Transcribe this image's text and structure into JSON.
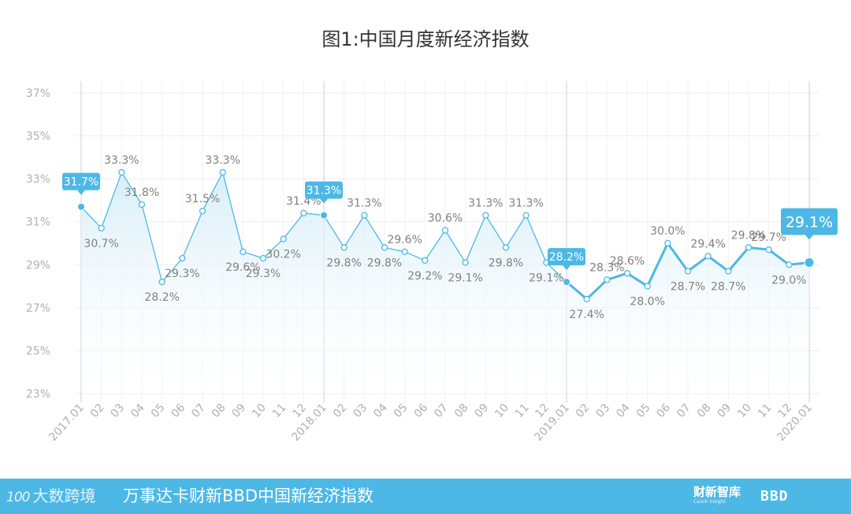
{
  "branding": {
    "watermark": "大数跨境",
    "watermark_num": "100",
    "footer_title": "万事达卡财新BBD中国新经济指数",
    "caixin_logo": "财新智库",
    "caixin_sub": "Caixin Insight",
    "bbd_logo": "BBD"
  },
  "colors": {
    "line": "#4db8e6",
    "area_top": "#d8eef9",
    "callout": "#4db8e6",
    "axis_text": "#b0b0b0",
    "label_text": "#808080",
    "grid": "#eeeeee",
    "footer": "#4db8e6"
  },
  "chart_data": {
    "type": "area",
    "title": "图1:中国月度新经济指数",
    "x_tick_labels": [
      "2017.01",
      "02",
      "03",
      "04",
      "05",
      "06",
      "07",
      "08",
      "09",
      "10",
      "11",
      "12",
      "2018.01",
      "02",
      "03",
      "04",
      "05",
      "06",
      "07",
      "08",
      "09",
      "10",
      "11",
      "12",
      "2019.01",
      "02",
      "03",
      "04",
      "05",
      "06",
      "07",
      "08",
      "09",
      "10",
      "11",
      "12",
      "2020.01"
    ],
    "year_markers": [
      "2017.01",
      "2018.01",
      "2019.01",
      "2020.01"
    ],
    "y_ticks": [
      "37%",
      "35%",
      "33%",
      "31%",
      "29%",
      "27%",
      "25%",
      "23%"
    ],
    "ylim": [
      23,
      37
    ],
    "values": [
      31.7,
      30.7,
      33.3,
      31.8,
      28.2,
      29.3,
      31.5,
      33.3,
      29.6,
      29.3,
      30.2,
      31.4,
      31.3,
      29.8,
      31.3,
      29.8,
      29.6,
      29.2,
      30.6,
      29.1,
      31.3,
      29.8,
      31.3,
      29.1,
      28.2,
      27.4,
      28.3,
      28.6,
      28.0,
      30.0,
      28.7,
      29.4,
      28.7,
      29.8,
      29.7,
      29.0,
      29.1
    ],
    "data_labels": [
      "31.7%",
      "30.7%",
      "33.3%",
      "31.8%",
      "28.2%",
      "29.3%",
      "31.5%",
      "33.3%",
      "29.6%",
      "29.3%",
      "30.2%",
      "31.4%",
      "31.3%",
      "29.8%",
      "31.3%",
      "29.8%",
      "29.6%",
      "29.2%",
      "30.6%",
      "29.1%",
      "31.3%",
      "29.8%",
      "31.3%",
      "29.1%",
      "28.2%",
      "27.4%",
      "28.3%",
      "28.6%",
      "28.0%",
      "30.0%",
      "28.7%",
      "29.4%",
      "28.7%",
      "29.8%",
      "29.7%",
      "29.0%",
      "29.1%"
    ],
    "highlighted_indices": [
      0,
      12,
      24,
      36
    ]
  }
}
